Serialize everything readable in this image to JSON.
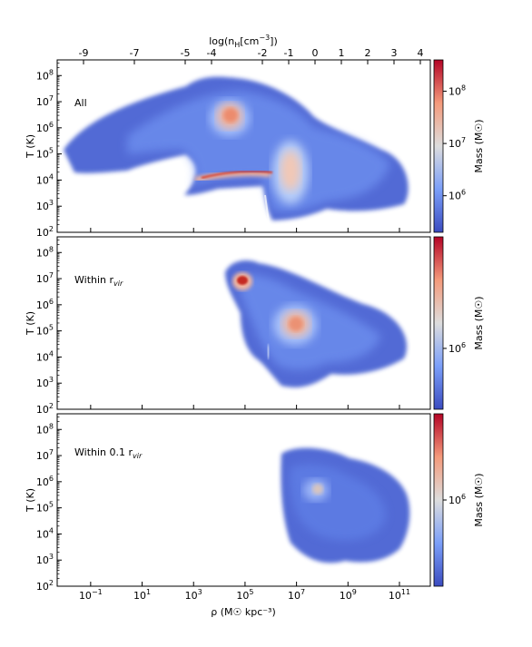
{
  "chart_data": {
    "type": "heatmap",
    "top_axis": {
      "label_main": "log(n",
      "label_sub": "H",
      "label_rest": "[cm",
      "label_exp": "−3",
      "label_end": "])",
      "ticks": [
        "-9",
        "-7",
        "-5",
        "-4",
        "-2",
        "-1",
        "0",
        "1",
        "2",
        "3",
        "4"
      ]
    },
    "x_axis": {
      "label": "ρ (M☉ kpc⁻³)",
      "scale": "log",
      "range_log10": [
        -2.3,
        12.2
      ],
      "ticks": [
        {
          "base": "10",
          "exp": "−1",
          "log": -1
        },
        {
          "base": "10",
          "exp": "1",
          "log": 1
        },
        {
          "base": "10",
          "exp": "3",
          "log": 3
        },
        {
          "base": "10",
          "exp": "5",
          "log": 5
        },
        {
          "base": "10",
          "exp": "7",
          "log": 7
        },
        {
          "base": "10",
          "exp": "9",
          "log": 9
        },
        {
          "base": "10",
          "exp": "11",
          "log": 11
        }
      ]
    },
    "y_axis": {
      "label": "T (K)",
      "scale": "log",
      "range_log10": [
        2,
        8.6
      ],
      "ticks": [
        {
          "base": "10",
          "exp": "2",
          "log": 2
        },
        {
          "base": "10",
          "exp": "3",
          "log": 3
        },
        {
          "base": "10",
          "exp": "4",
          "log": 4
        },
        {
          "base": "10",
          "exp": "5",
          "log": 5
        },
        {
          "base": "10",
          "exp": "6",
          "log": 6
        },
        {
          "base": "10",
          "exp": "7",
          "log": 7
        },
        {
          "base": "10",
          "exp": "8",
          "log": 8
        }
      ]
    },
    "panels": [
      {
        "name": "All",
        "label_main": "All",
        "label_sub": "",
        "colorbar": {
          "label": "Mass (M☉)",
          "ticks": [
            {
              "base": "10",
              "exp": "6",
              "log": 6
            },
            {
              "base": "10",
              "exp": "7",
              "log": 7
            },
            {
              "base": "10",
              "exp": "8",
              "log": 8
            }
          ],
          "range_log10": [
            5.3,
            8.6
          ]
        }
      },
      {
        "name": "Within r_vir",
        "label_main": "Within r",
        "label_sub": "vir",
        "colorbar": {
          "label": "Mass (M☉)",
          "ticks": [
            {
              "base": "10",
              "exp": "6",
              "log": 6
            }
          ],
          "range_log10": [
            5.4,
            7.1
          ]
        }
      },
      {
        "name": "Within 0.1 r_vir",
        "label_main": "Within 0.1 r",
        "label_sub": "vir",
        "colorbar": {
          "label": "Mass (M☉)",
          "ticks": [
            {
              "base": "10",
              "exp": "6",
              "log": 6
            }
          ],
          "range_log10": [
            5.4,
            6.6
          ]
        }
      }
    ],
    "colormap": {
      "low": "#3b4cc0",
      "mid": "#dddddd",
      "high": "#b40426"
    }
  }
}
